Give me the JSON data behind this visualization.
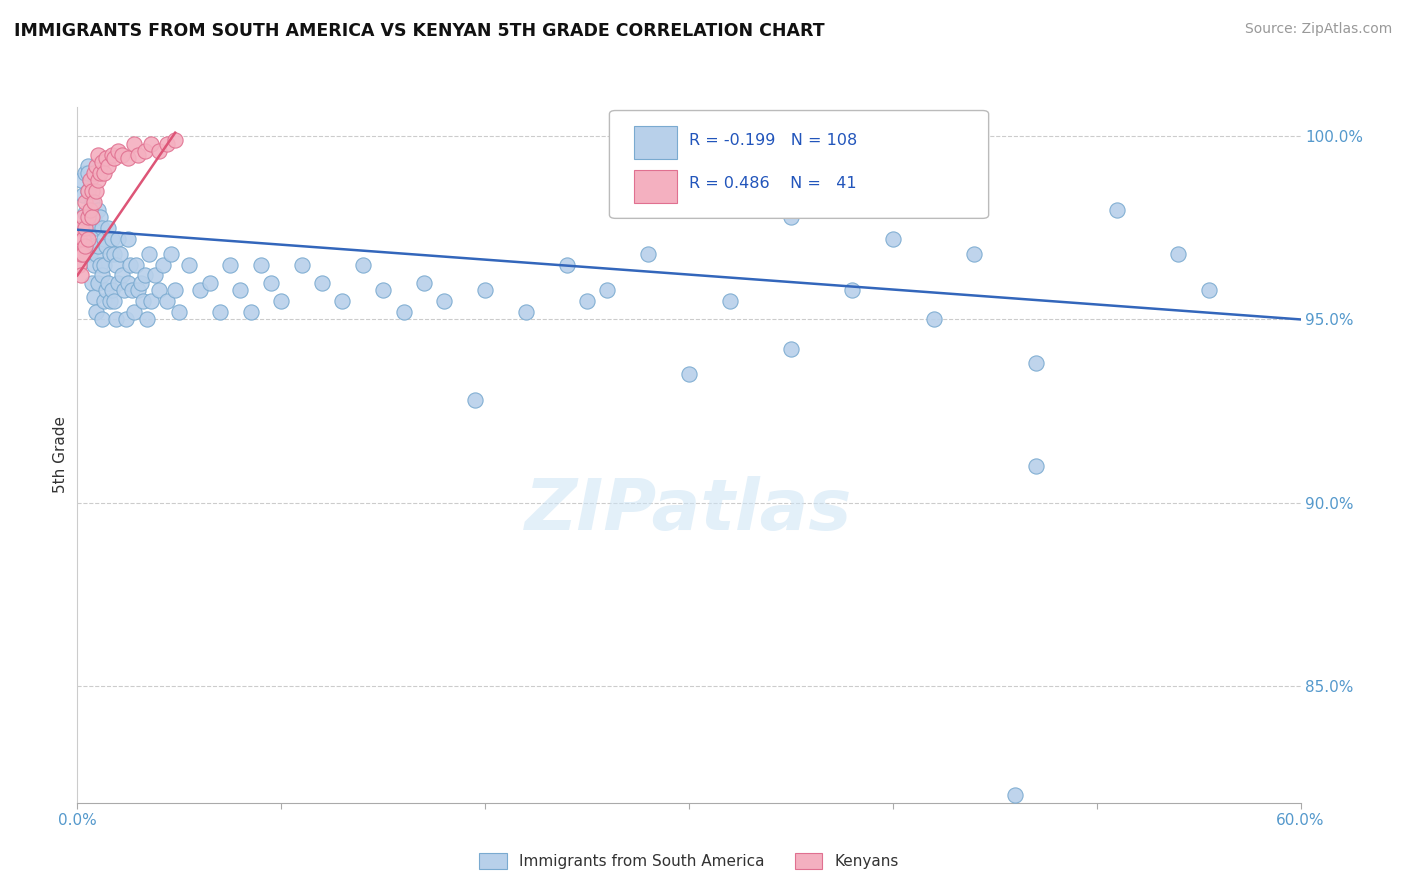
{
  "title": "IMMIGRANTS FROM SOUTH AMERICA VS KENYAN 5TH GRADE CORRELATION CHART",
  "source": "Source: ZipAtlas.com",
  "ylabel": "5th Grade",
  "xlim": [
    0.0,
    0.6
  ],
  "ylim": [
    0.818,
    1.008
  ],
  "xticks": [
    0.0,
    0.1,
    0.2,
    0.3,
    0.4,
    0.5,
    0.6
  ],
  "xticklabels": [
    "0.0%",
    "",
    "",
    "",
    "",
    "",
    "60.0%"
  ],
  "ytick_positions": [
    0.85,
    0.9,
    0.95,
    1.0
  ],
  "ytick_labels": [
    "85.0%",
    "90.0%",
    "95.0%",
    "100.0%"
  ],
  "legend_r_blue": "-0.199",
  "legend_n_blue": "108",
  "legend_r_pink": "0.486",
  "legend_n_pink": "41",
  "blue_color": "#b8d0ea",
  "pink_color": "#f4b0c0",
  "blue_edge_color": "#7aaad0",
  "pink_edge_color": "#e07090",
  "blue_line_color": "#3366bb",
  "pink_line_color": "#dd5577",
  "watermark": "ZIPatlas",
  "blue_scatter_x": [
    0.002,
    0.003,
    0.004,
    0.004,
    0.005,
    0.005,
    0.005,
    0.006,
    0.006,
    0.006,
    0.007,
    0.007,
    0.007,
    0.008,
    0.008,
    0.008,
    0.009,
    0.009,
    0.009,
    0.01,
    0.01,
    0.01,
    0.011,
    0.011,
    0.012,
    0.012,
    0.012,
    0.013,
    0.013,
    0.013,
    0.014,
    0.014,
    0.015,
    0.015,
    0.016,
    0.016,
    0.017,
    0.017,
    0.018,
    0.018,
    0.019,
    0.019,
    0.02,
    0.02,
    0.021,
    0.022,
    0.023,
    0.024,
    0.025,
    0.025,
    0.026,
    0.027,
    0.028,
    0.029,
    0.03,
    0.031,
    0.032,
    0.033,
    0.034,
    0.035,
    0.036,
    0.038,
    0.04,
    0.042,
    0.044,
    0.046,
    0.048,
    0.05,
    0.055,
    0.06,
    0.065,
    0.07,
    0.075,
    0.08,
    0.085,
    0.09,
    0.095,
    0.1,
    0.11,
    0.12,
    0.13,
    0.14,
    0.15,
    0.16,
    0.17,
    0.18,
    0.2,
    0.22,
    0.24,
    0.26,
    0.28,
    0.32,
    0.35,
    0.38,
    0.4,
    0.42,
    0.44,
    0.46,
    0.47,
    0.51,
    0.54,
    0.555,
    0.47,
    0.35,
    0.3,
    0.25,
    0.195,
    0.005
  ],
  "blue_scatter_y": [
    0.988,
    0.984,
    0.99,
    0.979,
    0.985,
    0.992,
    0.974,
    0.988,
    0.975,
    0.968,
    0.982,
    0.97,
    0.96,
    0.978,
    0.965,
    0.956,
    0.975,
    0.968,
    0.952,
    0.98,
    0.97,
    0.96,
    0.978,
    0.965,
    0.975,
    0.962,
    0.95,
    0.972,
    0.965,
    0.955,
    0.97,
    0.958,
    0.975,
    0.96,
    0.968,
    0.955,
    0.972,
    0.958,
    0.968,
    0.955,
    0.965,
    0.95,
    0.972,
    0.96,
    0.968,
    0.962,
    0.958,
    0.95,
    0.972,
    0.96,
    0.965,
    0.958,
    0.952,
    0.965,
    0.958,
    0.96,
    0.955,
    0.962,
    0.95,
    0.968,
    0.955,
    0.962,
    0.958,
    0.965,
    0.955,
    0.968,
    0.958,
    0.952,
    0.965,
    0.958,
    0.96,
    0.952,
    0.965,
    0.958,
    0.952,
    0.965,
    0.96,
    0.955,
    0.965,
    0.96,
    0.955,
    0.965,
    0.958,
    0.952,
    0.96,
    0.955,
    0.958,
    0.952,
    0.965,
    0.958,
    0.968,
    0.955,
    0.978,
    0.958,
    0.972,
    0.95,
    0.968,
    0.82,
    0.938,
    0.98,
    0.968,
    0.958,
    0.91,
    0.942,
    0.935,
    0.955,
    0.928,
    0.99
  ],
  "pink_scatter_x": [
    0.001,
    0.001,
    0.002,
    0.002,
    0.002,
    0.003,
    0.003,
    0.003,
    0.004,
    0.004,
    0.004,
    0.005,
    0.005,
    0.005,
    0.006,
    0.006,
    0.007,
    0.007,
    0.008,
    0.008,
    0.009,
    0.009,
    0.01,
    0.01,
    0.011,
    0.012,
    0.013,
    0.014,
    0.015,
    0.017,
    0.018,
    0.02,
    0.022,
    0.025,
    0.028,
    0.03,
    0.033,
    0.036,
    0.04,
    0.044,
    0.048
  ],
  "pink_scatter_y": [
    0.965,
    0.972,
    0.968,
    0.975,
    0.962,
    0.972,
    0.978,
    0.968,
    0.975,
    0.982,
    0.97,
    0.978,
    0.985,
    0.972,
    0.98,
    0.988,
    0.978,
    0.985,
    0.982,
    0.99,
    0.985,
    0.992,
    0.988,
    0.995,
    0.99,
    0.993,
    0.99,
    0.994,
    0.992,
    0.995,
    0.994,
    0.996,
    0.995,
    0.994,
    0.998,
    0.995,
    0.996,
    0.998,
    0.996,
    0.998,
    0.999
  ],
  "blue_trend_x": [
    0.0,
    0.6
  ],
  "blue_trend_y": [
    0.9745,
    0.95
  ],
  "pink_trend_x": [
    0.0,
    0.048
  ],
  "pink_trend_y": [
    0.962,
    1.001
  ]
}
